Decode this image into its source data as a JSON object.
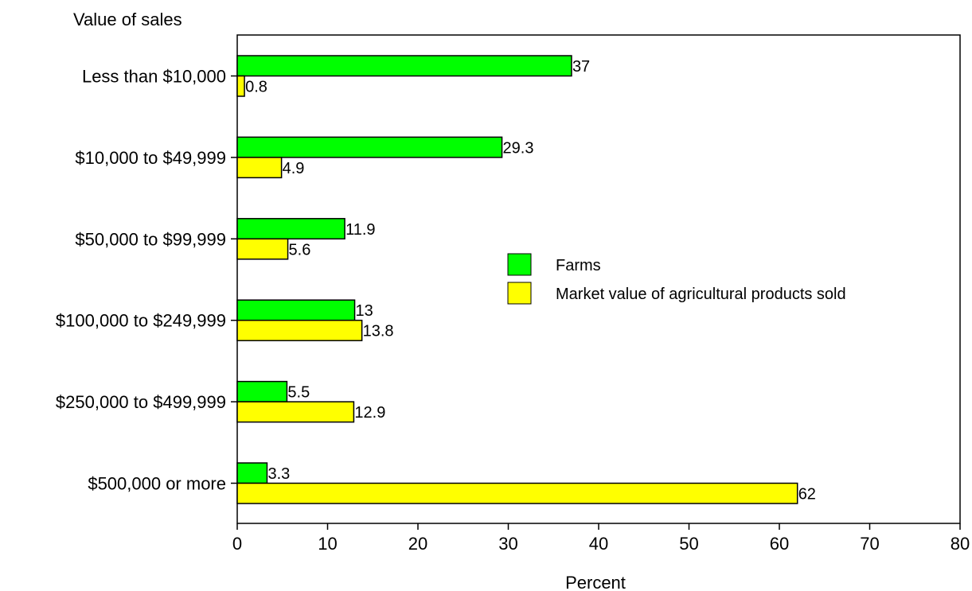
{
  "chart_data": {
    "type": "bar",
    "orientation": "horizontal",
    "title": "",
    "ylabel": "Value of sales",
    "xlabel": "Percent",
    "xlim": [
      0,
      80
    ],
    "x_ticks": [
      0,
      10,
      20,
      30,
      40,
      50,
      60,
      70,
      80
    ],
    "grid": false,
    "legend_position": "center-right",
    "categories": [
      "Less than  $10,000",
      "$10,000 to $49,999",
      "$50,000 to $99,999",
      "$100,000 to $249,999",
      "$250,000 to $499,999",
      "$500,000 or more"
    ],
    "series": [
      {
        "name": "Farms",
        "color": "#00ff00",
        "values": [
          37,
          29.3,
          11.9,
          13,
          5.5,
          3.3
        ],
        "labels": [
          "37",
          "29.3",
          "11.9",
          "13",
          "5.5",
          "3.3"
        ]
      },
      {
        "name": "Market value of agricultural products sold",
        "color": "#ffff00",
        "values": [
          0.8,
          4.9,
          5.6,
          13.8,
          12.9,
          62
        ],
        "labels": [
          "0.8",
          "4.9",
          "5.6",
          "13.8",
          "12.9",
          "62"
        ]
      }
    ]
  }
}
